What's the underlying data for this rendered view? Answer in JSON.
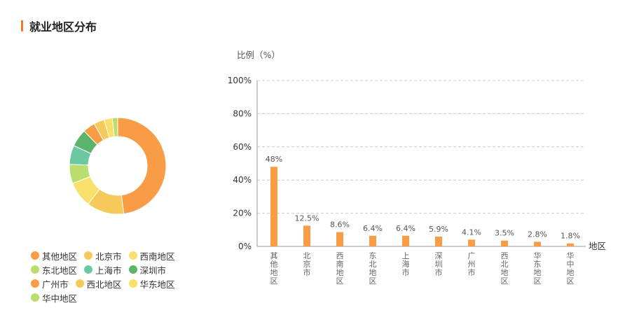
{
  "section": {
    "title": "就业地区分布"
  },
  "legend": [
    {
      "label": "其他地区",
      "color": "#f89c45"
    },
    {
      "label": "北京市",
      "color": "#f5c95a"
    },
    {
      "label": "西南地区",
      "color": "#f8e06a"
    },
    {
      "label": "东北地区",
      "color": "#b9de6d"
    },
    {
      "label": "上海市",
      "color": "#6cc8a0"
    },
    {
      "label": "深圳市",
      "color": "#5bb46a"
    },
    {
      "label": "广州市",
      "color": "#f89c45"
    },
    {
      "label": "西北地区",
      "color": "#f5c95a"
    },
    {
      "label": "华东地区",
      "color": "#f8e06a"
    },
    {
      "label": "华中地区",
      "color": "#b9de6d"
    }
  ],
  "chart_data": [
    {
      "type": "pie",
      "variant": "donut",
      "categories": [
        "其他地区",
        "北京市",
        "西南地区",
        "东北地区",
        "上海市",
        "深圳市",
        "广州市",
        "西北地区",
        "华东地区",
        "华中地区"
      ],
      "values": [
        48,
        12.5,
        8.6,
        6.4,
        6.4,
        5.9,
        4.1,
        3.5,
        2.8,
        1.8
      ],
      "colors": [
        "#f89c45",
        "#f5c95a",
        "#f8e06a",
        "#b9de6d",
        "#6cc8a0",
        "#5bb46a",
        "#f89c45",
        "#f5c95a",
        "#f8e06a",
        "#b9de6d"
      ],
      "legend_position": "bottom-left"
    },
    {
      "type": "bar",
      "categories": [
        "其他地区",
        "北京市",
        "西南地区",
        "东北地区",
        "上海市",
        "深圳市",
        "广州市",
        "西北地区",
        "华东地区",
        "华中地区"
      ],
      "values": [
        48,
        12.5,
        8.6,
        6.4,
        6.4,
        5.9,
        4.1,
        3.5,
        2.8,
        1.8
      ],
      "data_labels": [
        "48%",
        "12.5%",
        "8.6%",
        "6.4%",
        "6.4%",
        "5.9%",
        "4.1%",
        "3.5%",
        "2.8%",
        "1.8%"
      ],
      "ylabel": "比例（%）",
      "xlabel": "地区",
      "ylim": [
        0,
        100
      ],
      "yticks": [
        0,
        20,
        40,
        60,
        80,
        100
      ],
      "ytick_labels": [
        "0%",
        "20%",
        "40%",
        "60%",
        "80%",
        "100%"
      ],
      "grid": true,
      "bar_color": "#f89c45"
    }
  ]
}
